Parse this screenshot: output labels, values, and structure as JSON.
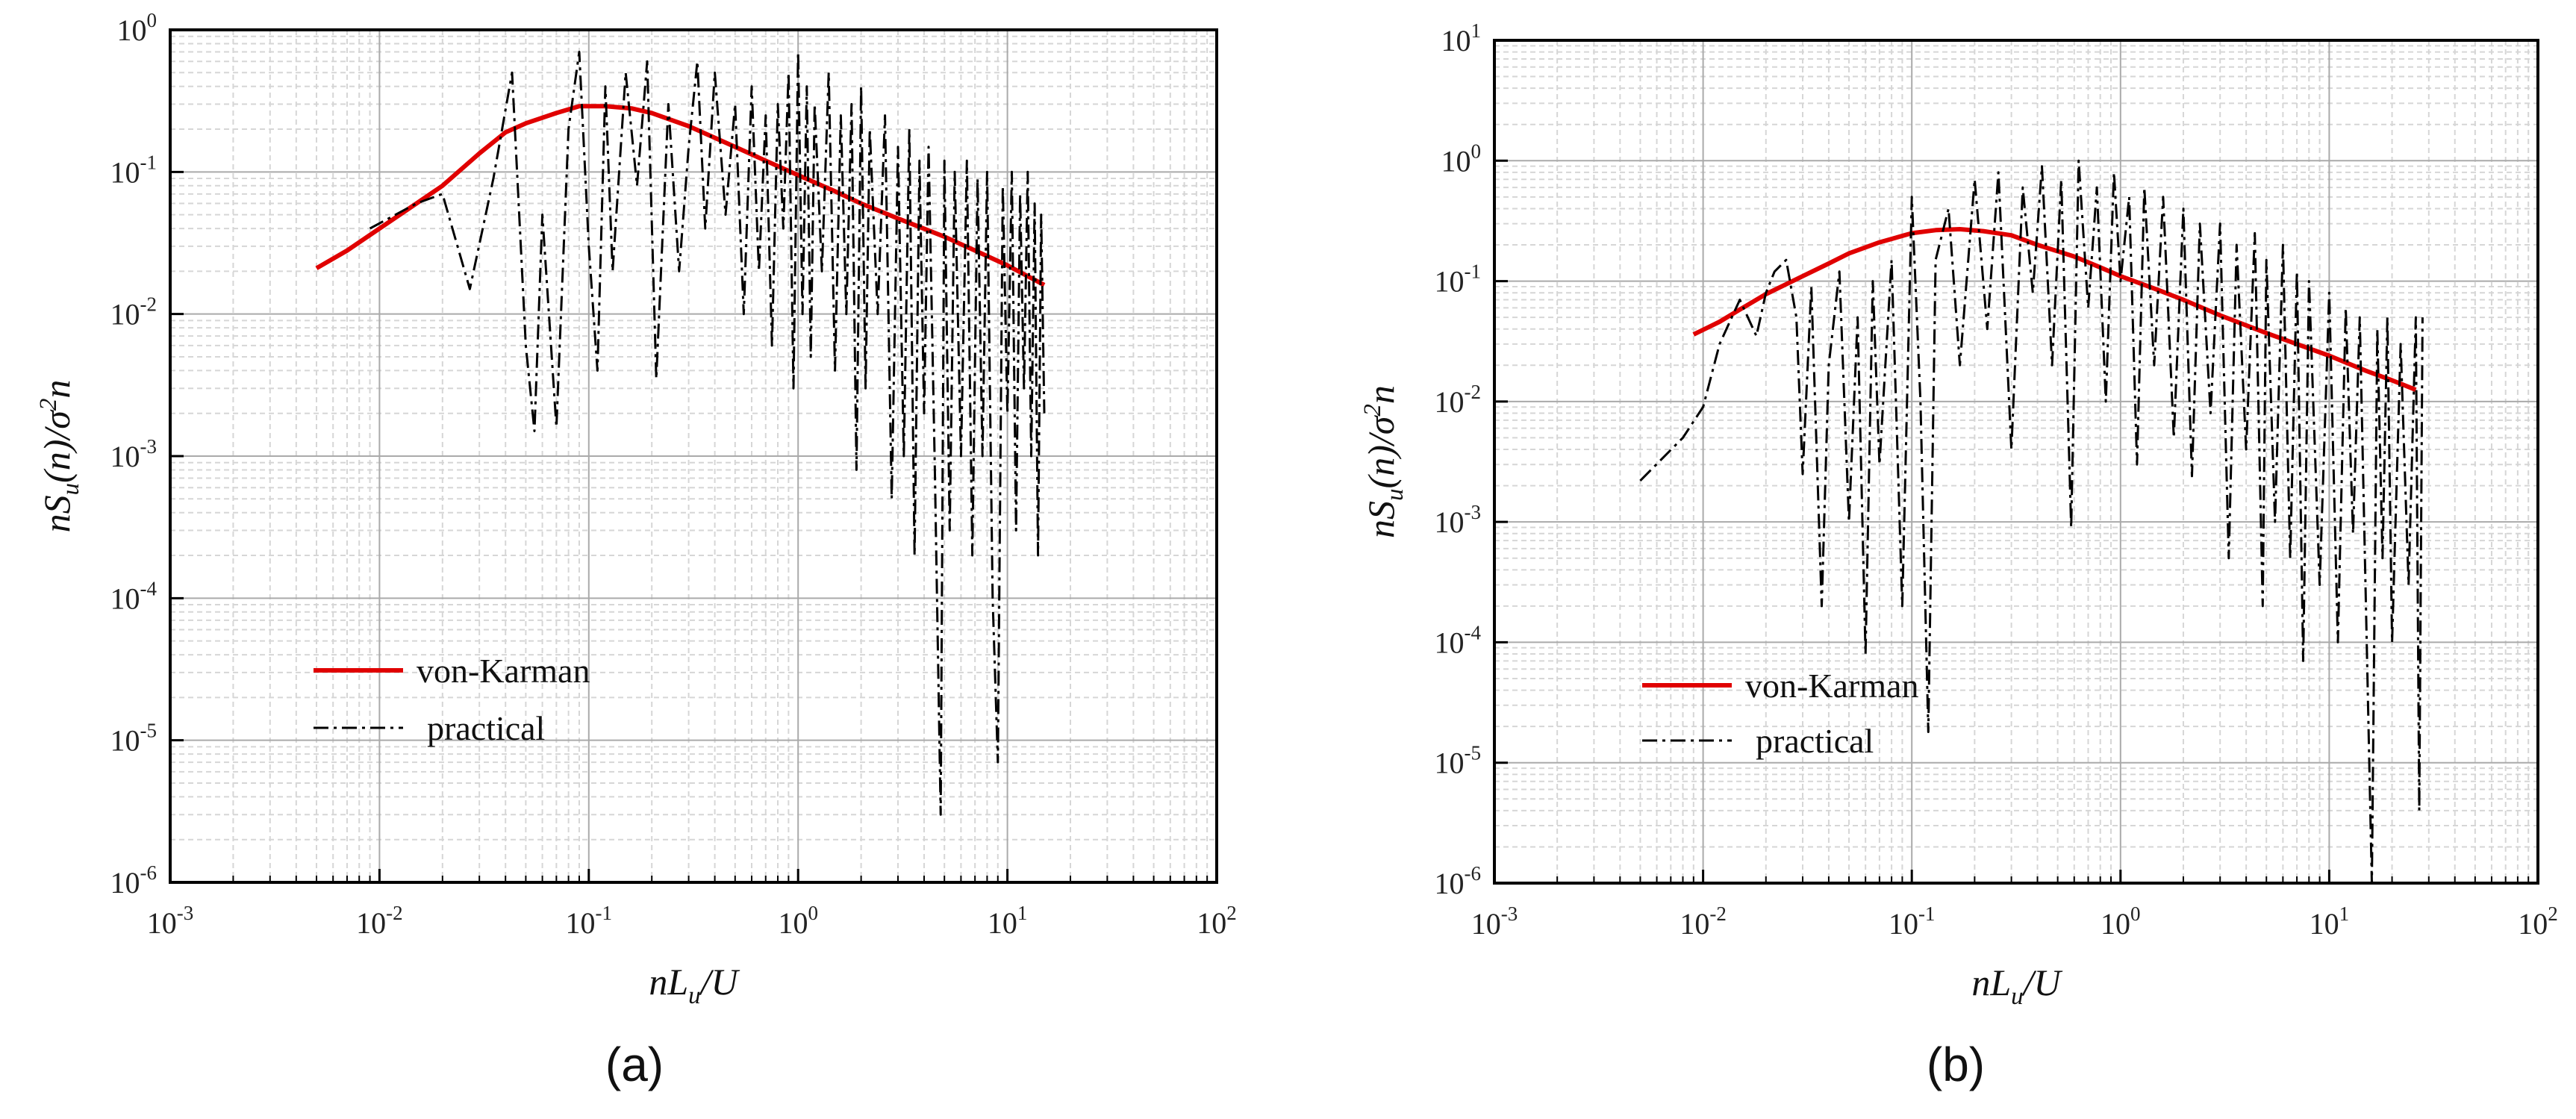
{
  "chart_data": [
    {
      "type": "line",
      "panel_label": "(a)",
      "xlabel": "nL_u/U",
      "ylabel": "nS_u(n)/σ^2 n",
      "xscale": "log",
      "yscale": "log",
      "xlim": [
        0.001,
        100
      ],
      "ylim": [
        1e-06,
        1
      ],
      "x_tick_labels": [
        "10^-3",
        "10^-2",
        "10^-1",
        "10^0",
        "10^1",
        "10^2"
      ],
      "y_tick_labels": [
        "10^-6",
        "10^-5",
        "10^-4",
        "10^-3",
        "10^-2",
        "10^-1",
        "10^0"
      ],
      "grid": true,
      "legend_placement": "lower-left",
      "series": [
        {
          "name": "von-Karman",
          "color": "#e00000",
          "style": "solid",
          "x": [
            0.005,
            0.007,
            0.01,
            0.015,
            0.02,
            0.03,
            0.04,
            0.05,
            0.07,
            0.09,
            0.12,
            0.16,
            0.2,
            0.3,
            0.5,
            0.7,
            1.0,
            1.5,
            2.0,
            3.0,
            5.0,
            7.0,
            10.0,
            15.0
          ],
          "y": [
            0.021,
            0.028,
            0.04,
            0.06,
            0.08,
            0.135,
            0.19,
            0.22,
            0.26,
            0.29,
            0.29,
            0.28,
            0.26,
            0.21,
            0.15,
            0.12,
            0.095,
            0.073,
            0.06,
            0.047,
            0.035,
            0.028,
            0.022,
            0.016
          ]
        },
        {
          "name": "practical",
          "color": "#000000",
          "style": "dash-dot",
          "x": [
            0.009,
            0.015,
            0.02,
            0.027,
            0.035,
            0.043,
            0.05,
            0.055,
            0.06,
            0.07,
            0.08,
            0.09,
            0.1,
            0.11,
            0.12,
            0.13,
            0.15,
            0.17,
            0.19,
            0.21,
            0.24,
            0.27,
            0.3,
            0.33,
            0.36,
            0.4,
            0.45,
            0.5,
            0.55,
            0.6,
            0.65,
            0.7,
            0.75,
            0.8,
            0.85,
            0.9,
            0.95,
            1.0,
            1.05,
            1.1,
            1.15,
            1.2,
            1.3,
            1.4,
            1.5,
            1.6,
            1.7,
            1.8,
            1.9,
            2.0,
            2.1,
            2.2,
            2.4,
            2.6,
            2.8,
            3.0,
            3.2,
            3.4,
            3.6,
            3.8,
            4.0,
            4.2,
            4.5,
            4.8,
            5.0,
            5.3,
            5.6,
            6.0,
            6.4,
            6.8,
            7.2,
            7.6,
            8.0,
            8.5,
            9.0,
            9.5,
            10.0,
            10.5,
            11.0,
            11.5,
            12.0,
            12.5,
            13.0,
            13.5,
            14.0,
            14.5,
            15.0
          ],
          "y": [
            0.04,
            0.06,
            0.07,
            0.015,
            0.09,
            0.5,
            0.006,
            0.0015,
            0.05,
            0.0016,
            0.2,
            0.7,
            0.03,
            0.004,
            0.4,
            0.02,
            0.5,
            0.08,
            0.6,
            0.0035,
            0.3,
            0.02,
            0.15,
            0.6,
            0.04,
            0.5,
            0.05,
            0.3,
            0.01,
            0.4,
            0.02,
            0.25,
            0.006,
            0.3,
            0.04,
            0.5,
            0.003,
            0.7,
            0.01,
            0.4,
            0.005,
            0.3,
            0.02,
            0.5,
            0.004,
            0.25,
            0.01,
            0.3,
            0.0008,
            0.4,
            0.003,
            0.2,
            0.01,
            0.25,
            0.0005,
            0.15,
            0.001,
            0.2,
            0.0002,
            0.12,
            0.002,
            0.15,
            0.0008,
            3e-06,
            0.12,
            0.0003,
            0.1,
            0.001,
            0.12,
            0.0002,
            0.09,
            0.001,
            0.1,
            0.0001,
            7e-06,
            0.08,
            0.002,
            0.1,
            0.0003,
            0.07,
            0.003,
            0.1,
            0.001,
            0.06,
            0.0002,
            0.05,
            0.002
          ]
        }
      ]
    },
    {
      "type": "line",
      "panel_label": "(b)",
      "xlabel": "nL_u/U",
      "ylabel": "nS_u(n)/σ^2 n",
      "xscale": "log",
      "yscale": "log",
      "xlim": [
        0.001,
        100
      ],
      "ylim": [
        1e-06,
        10
      ],
      "x_tick_labels": [
        "10^-3",
        "10^-2",
        "10^-1",
        "10^0",
        "10^1",
        "10^2"
      ],
      "y_tick_labels": [
        "10^-6",
        "10^-5",
        "10^-4",
        "10^-3",
        "10^-2",
        "10^-1",
        "10^0",
        "10^1"
      ],
      "grid": true,
      "legend_placement": "lower-left",
      "series": [
        {
          "name": "von-Karman",
          "color": "#e00000",
          "style": "solid",
          "x": [
            0.009,
            0.012,
            0.015,
            0.02,
            0.03,
            0.04,
            0.05,
            0.07,
            0.1,
            0.13,
            0.17,
            0.22,
            0.3,
            0.4,
            0.6,
            0.8,
            1.0,
            1.5,
            2.0,
            3.0,
            5.0,
            7.0,
            10.0,
            15.0,
            20.0,
            26.0
          ],
          "y": [
            0.036,
            0.046,
            0.058,
            0.078,
            0.11,
            0.14,
            0.17,
            0.21,
            0.25,
            0.265,
            0.27,
            0.26,
            0.24,
            0.2,
            0.16,
            0.13,
            0.11,
            0.085,
            0.07,
            0.052,
            0.037,
            0.03,
            0.024,
            0.018,
            0.015,
            0.0125
          ]
        },
        {
          "name": "practical",
          "color": "#000000",
          "style": "dash-dot",
          "x": [
            0.005,
            0.008,
            0.01,
            0.012,
            0.015,
            0.018,
            0.02,
            0.022,
            0.025,
            0.028,
            0.03,
            0.033,
            0.037,
            0.04,
            0.045,
            0.05,
            0.055,
            0.06,
            0.065,
            0.07,
            0.08,
            0.09,
            0.1,
            0.11,
            0.12,
            0.13,
            0.15,
            0.17,
            0.2,
            0.23,
            0.26,
            0.3,
            0.34,
            0.38,
            0.42,
            0.47,
            0.52,
            0.58,
            0.63,
            0.7,
            0.77,
            0.85,
            0.93,
            1.0,
            1.1,
            1.2,
            1.3,
            1.45,
            1.6,
            1.8,
            2.0,
            2.2,
            2.4,
            2.7,
            3.0,
            3.3,
            3.6,
            4.0,
            4.4,
            4.8,
            5.0,
            5.5,
            6.0,
            6.5,
            7.0,
            7.5,
            8.0,
            9.0,
            10.0,
            11.0,
            12.0,
            13.0,
            14.0,
            15.0,
            16.0,
            17.0,
            18.0,
            19.0,
            20.0,
            22.0,
            24.0,
            26.0,
            27.0,
            28.0
          ],
          "y": [
            0.0022,
            0.005,
            0.009,
            0.03,
            0.07,
            0.035,
            0.08,
            0.12,
            0.15,
            0.05,
            0.0025,
            0.09,
            0.0002,
            0.02,
            0.12,
            0.001,
            0.05,
            8e-05,
            0.1,
            0.003,
            0.15,
            0.0002,
            0.5,
            0.01,
            1.8e-05,
            0.15,
            0.4,
            0.02,
            0.7,
            0.04,
            0.8,
            0.004,
            0.6,
            0.08,
            0.9,
            0.02,
            0.7,
            0.0009,
            1.0,
            0.06,
            0.6,
            0.01,
            0.8,
            0.1,
            0.5,
            0.003,
            0.6,
            0.02,
            0.5,
            0.005,
            0.4,
            0.0024,
            0.3,
            0.008,
            0.3,
            0.0005,
            0.2,
            0.004,
            0.25,
            0.0002,
            0.15,
            0.001,
            0.2,
            0.0005,
            0.12,
            7e-05,
            0.1,
            0.0003,
            0.08,
            0.0001,
            0.06,
            0.0008,
            0.05,
            0.0002,
            1e-06,
            0.04,
            0.0005,
            0.05,
            0.0001,
            0.03,
            0.0003,
            0.05,
            4e-06,
            0.05
          ]
        }
      ]
    }
  ],
  "panels": [
    {
      "id": "a",
      "label": "(a)",
      "xlabel_base": "nL",
      "xlabel_sub": "u",
      "xlabel_tail": "/U",
      "ylabel_pre": "nS",
      "ylabel_sub": "u",
      "ylabel_mid": "(n)/σ",
      "ylabel_sup": "2",
      "ylabel_tail": "n",
      "legend": [
        "von-Karman",
        "practical"
      ],
      "x_ticks": [
        {
          "base": "10",
          "exp": "-3"
        },
        {
          "base": "10",
          "exp": "-2"
        },
        {
          "base": "10",
          "exp": "-1"
        },
        {
          "base": "10",
          "exp": "0"
        },
        {
          "base": "10",
          "exp": "1"
        },
        {
          "base": "10",
          "exp": "2"
        }
      ],
      "y_ticks": [
        {
          "base": "10",
          "exp": "-6"
        },
        {
          "base": "10",
          "exp": "-5"
        },
        {
          "base": "10",
          "exp": "-4"
        },
        {
          "base": "10",
          "exp": "-3"
        },
        {
          "base": "10",
          "exp": "-2"
        },
        {
          "base": "10",
          "exp": "-1"
        },
        {
          "base": "10",
          "exp": "0"
        }
      ]
    },
    {
      "id": "b",
      "label": "(b)",
      "xlabel_base": "nL",
      "xlabel_sub": "u",
      "xlabel_tail": "/U",
      "ylabel_pre": "nS",
      "ylabel_sub": "u",
      "ylabel_mid": "(n)/σ",
      "ylabel_sup": "2",
      "ylabel_tail": "n",
      "legend": [
        "von-Karman",
        "practical"
      ],
      "x_ticks": [
        {
          "base": "10",
          "exp": "-3"
        },
        {
          "base": "10",
          "exp": "-2"
        },
        {
          "base": "10",
          "exp": "-1"
        },
        {
          "base": "10",
          "exp": "0"
        },
        {
          "base": "10",
          "exp": "1"
        },
        {
          "base": "10",
          "exp": "2"
        }
      ],
      "y_ticks": [
        {
          "base": "10",
          "exp": "-6"
        },
        {
          "base": "10",
          "exp": "-5"
        },
        {
          "base": "10",
          "exp": "-4"
        },
        {
          "base": "10",
          "exp": "-3"
        },
        {
          "base": "10",
          "exp": "-2"
        },
        {
          "base": "10",
          "exp": "-1"
        },
        {
          "base": "10",
          "exp": "0"
        },
        {
          "base": "10",
          "exp": "1"
        }
      ]
    }
  ]
}
